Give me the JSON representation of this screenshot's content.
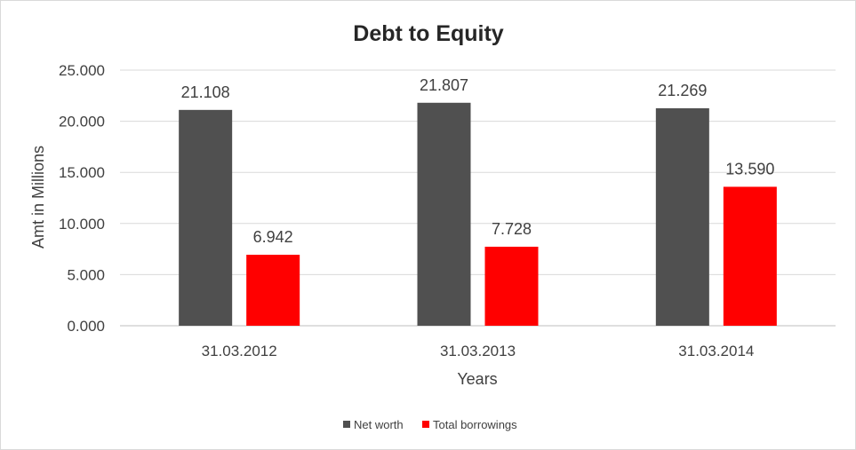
{
  "chart_data": {
    "type": "bar",
    "title": "Debt to Equity",
    "xlabel": "Years",
    "ylabel": "Amt in Millions",
    "categories": [
      "31.03.2012",
      "31.03.2013",
      "31.03.2014"
    ],
    "series": [
      {
        "name": "Net worth",
        "values": [
          21.108,
          21.807,
          21.269
        ],
        "color": "#505050",
        "labels": [
          "21.108",
          "21.807",
          "21.269"
        ]
      },
      {
        "name": "Total borrowings",
        "values": [
          6.942,
          7.728,
          13.59
        ],
        "color": "#ff0000",
        "labels": [
          "6.942",
          "7.728",
          "13.590"
        ]
      }
    ],
    "ylim": [
      0,
      25
    ],
    "y_ticks": [
      "0.000",
      "5.000",
      "10.000",
      "15.000",
      "20.000",
      "25.000"
    ],
    "grid": true,
    "legend_position": "bottom"
  }
}
